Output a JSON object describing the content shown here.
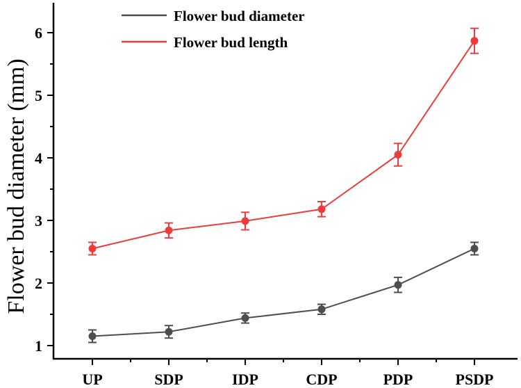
{
  "chart_data": {
    "type": "line",
    "title": "",
    "xlabel": "",
    "ylabel": "Flower bud diameter (mm)",
    "categories": [
      "UP",
      "SDP",
      "IDP",
      "CDP",
      "PDP",
      "PSDP"
    ],
    "ylim": [
      0.78,
      6.47
    ],
    "yticks": [
      "1",
      "2",
      "3",
      "4",
      "5",
      "6"
    ],
    "grid": false,
    "legend_position": "top-left",
    "series": [
      {
        "name": "Flower bud diameter",
        "color": "#4d4d4d",
        "values": [
          1.15,
          1.22,
          1.44,
          1.58,
          1.97,
          2.55
        ],
        "errors": [
          0.1,
          0.1,
          0.08,
          0.08,
          0.12,
          0.1
        ]
      },
      {
        "name": "Flower bud length",
        "color": "#ee3b3b",
        "values": [
          2.55,
          2.84,
          2.99,
          3.18,
          4.05,
          5.87
        ],
        "errors": [
          0.1,
          0.12,
          0.14,
          0.12,
          0.18,
          0.2
        ]
      }
    ]
  }
}
